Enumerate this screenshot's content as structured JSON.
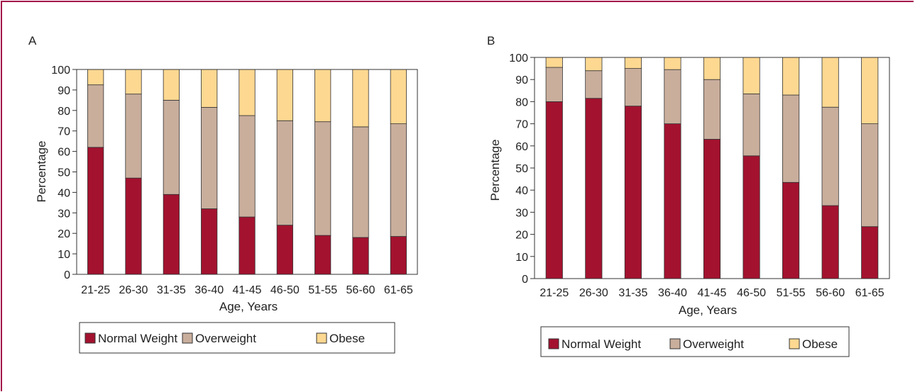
{
  "colors": {
    "normal": "#a3122f",
    "overweight": "#c9ae9c",
    "obese": "#fdd891",
    "frame": "#a3164a",
    "axis": "#333333"
  },
  "legend": {
    "items": [
      "Normal Weight",
      "Overweight",
      "Obese"
    ]
  },
  "chart_data": [
    {
      "panel": "A",
      "type": "bar",
      "stacked": true,
      "xlabel": "Age, Years",
      "ylabel": "Percentage",
      "ylim": [
        0,
        100
      ],
      "yticks": [
        0,
        10,
        20,
        30,
        40,
        50,
        60,
        70,
        80,
        90,
        100
      ],
      "categories": [
        "21-25",
        "26-30",
        "31-35",
        "36-40",
        "41-45",
        "46-50",
        "51-55",
        "56-60",
        "61-65"
      ],
      "series": [
        {
          "name": "Normal Weight",
          "values": [
            62,
            47,
            39,
            32,
            28,
            24,
            19,
            18,
            18.5
          ]
        },
        {
          "name": "Overweight",
          "values": [
            30.5,
            41,
            46,
            49.5,
            49.5,
            51,
            55.5,
            54,
            55
          ]
        },
        {
          "name": "Obese",
          "values": [
            7.5,
            12,
            15,
            18.5,
            22.5,
            25,
            25.5,
            28,
            26.5
          ]
        }
      ],
      "legend_position": "bottom"
    },
    {
      "panel": "B",
      "type": "bar",
      "stacked": true,
      "xlabel": "Age, Years",
      "ylabel": "Percentage",
      "ylim": [
        0,
        100
      ],
      "yticks": [
        0,
        10,
        20,
        30,
        40,
        50,
        60,
        70,
        80,
        90,
        100
      ],
      "categories": [
        "21-25",
        "26-30",
        "31-35",
        "36-40",
        "41-45",
        "46-50",
        "51-55",
        "56-60",
        "61-65"
      ],
      "series": [
        {
          "name": "Normal Weight",
          "values": [
            80,
            81.5,
            78,
            70,
            63,
            55.5,
            43.5,
            33,
            23.5
          ]
        },
        {
          "name": "Overweight",
          "values": [
            15.5,
            12.5,
            17,
            24.5,
            27,
            28,
            39.5,
            44.5,
            46.5
          ]
        },
        {
          "name": "Obese",
          "values": [
            4.5,
            6,
            5,
            5.5,
            10,
            16.5,
            17,
            22.5,
            30
          ]
        }
      ],
      "legend_position": "bottom"
    }
  ]
}
